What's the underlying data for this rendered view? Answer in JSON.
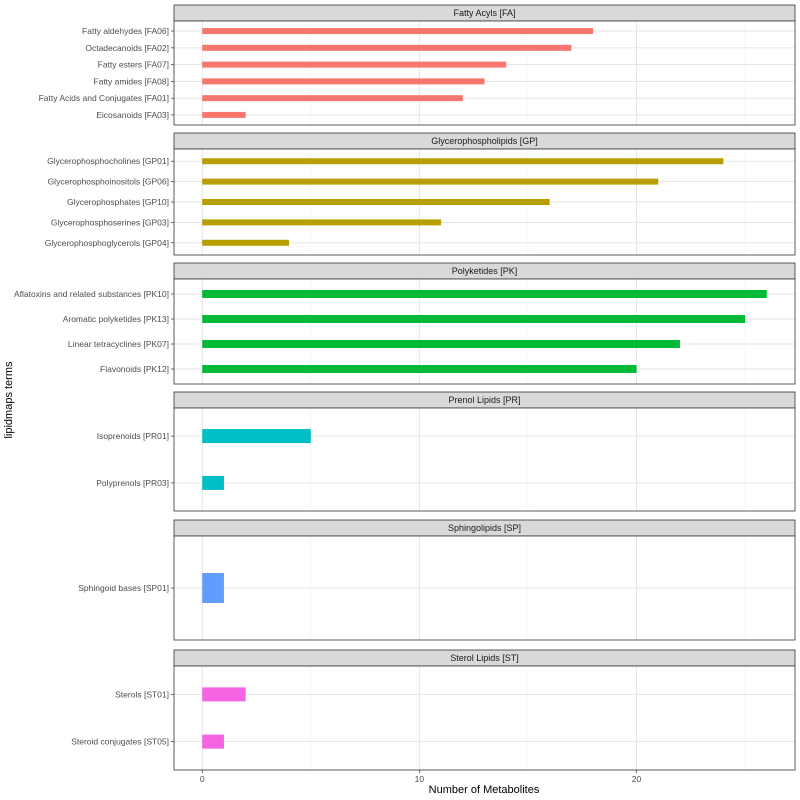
{
  "chart_data": {
    "type": "bar",
    "orientation": "horizontal",
    "xlabel": "Number of Metabolites",
    "ylabel": "lipidmaps terms",
    "xlim": [
      -1.3,
      27.3
    ],
    "xticks": [
      0,
      10,
      20
    ],
    "grid": true,
    "legend": "none",
    "panels": [
      {
        "title": "Fatty Acyls [FA]",
        "color": "#F8766D",
        "categories": [
          "Fatty aldehydes [FA06]",
          "Octadecanoids [FA02]",
          "Fatty esters [FA07]",
          "Fatty amides [FA08]",
          "Fatty Acids and Conjugates [FA01]",
          "Eicosanoids [FA03]"
        ],
        "values": [
          18,
          17,
          14,
          13,
          12,
          2
        ]
      },
      {
        "title": "Glycerophospholipids [GP]",
        "color": "#B79F00",
        "categories": [
          "Glycerophosphocholines [GP01]",
          "Glycerophosphoinositols [GP06]",
          "Glycerophosphates [GP10]",
          "Glycerophosphoserines [GP03]",
          "Glycerophosphoglycerols [GP04]"
        ],
        "values": [
          24,
          21,
          16,
          11,
          4
        ]
      },
      {
        "title": "Polyketides [PK]",
        "color": "#00BA38",
        "categories": [
          "Aflatoxins and related substances [PK10]",
          "Aromatic polyketides [PK13]",
          "Linear tetracyclines [PK07]",
          "Flavonoids [PK12]"
        ],
        "values": [
          26,
          25,
          22,
          20
        ]
      },
      {
        "title": "Prenol Lipids [PR]",
        "color": "#00BFC4",
        "categories": [
          "Isoprenoids [PR01]",
          "Polyprenols [PR03]"
        ],
        "values": [
          5,
          1
        ]
      },
      {
        "title": "Sphingolipids [SP]",
        "color": "#619CFF",
        "categories": [
          "Sphingoid bases [SP01]"
        ],
        "values": [
          1
        ]
      },
      {
        "title": "Sterol Lipids [ST]",
        "color": "#F564E3",
        "categories": [
          "Sterols [ST01]",
          "Steroid conjugates [ST05]"
        ],
        "values": [
          2,
          1
        ]
      }
    ]
  }
}
